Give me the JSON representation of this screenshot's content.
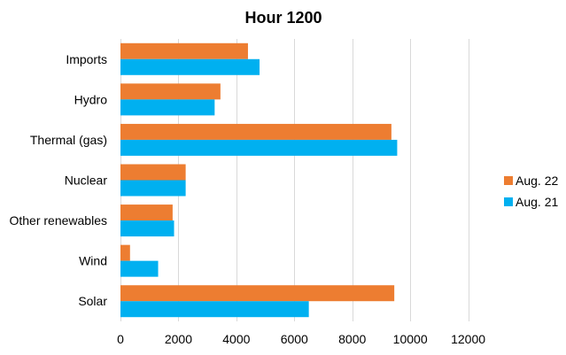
{
  "chart_data": {
    "type": "bar",
    "orientation": "horizontal",
    "title": "Hour 1200",
    "xlabel": "",
    "ylabel": "",
    "categories": [
      "Imports",
      "Hydro",
      "Thermal (gas)",
      "Nuclear",
      "Other renewables",
      "Wind",
      "Solar"
    ],
    "series": [
      {
        "name": "Aug. 22",
        "color": "#ed7d31",
        "values": [
          4400,
          3450,
          9350,
          2250,
          1800,
          330,
          9450
        ]
      },
      {
        "name": "Aug. 21",
        "color": "#00b0f0",
        "values": [
          4800,
          3250,
          9550,
          2250,
          1850,
          1300,
          6500
        ]
      }
    ],
    "xlim": [
      0,
      14000
    ],
    "xticks": [
      0,
      2000,
      4000,
      6000,
      8000,
      10000,
      12000
    ],
    "xtick_labels": [
      "0",
      "2000",
      "4000",
      "6000",
      "8000",
      "10000",
      "12000"
    ],
    "grid": "vertical",
    "legend": {
      "position": "right",
      "order": [
        "Aug. 22",
        "Aug. 21"
      ]
    }
  }
}
